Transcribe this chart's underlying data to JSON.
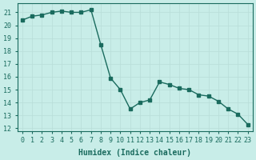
{
  "x": [
    0,
    1,
    2,
    3,
    4,
    5,
    6,
    7,
    8,
    9,
    10,
    11,
    12,
    13,
    14,
    15,
    16,
    17,
    18,
    19,
    20,
    21,
    22,
    23
  ],
  "y": [
    20.4,
    20.7,
    20.8,
    21.0,
    21.1,
    21.0,
    21.0,
    21.2,
    18.5,
    15.9,
    15.0,
    13.5,
    14.0,
    14.2,
    15.6,
    15.4,
    15.1,
    15.0,
    14.6,
    14.5,
    14.1,
    13.5,
    13.1,
    12.3
  ],
  "line_color": "#1a6b5e",
  "marker_color": "#1a6b5e",
  "bg_color": "#c8ede8",
  "grid_color": "#b8ddd8",
  "xlabel": "Humidex (Indice chaleur)",
  "xlim": [
    -0.5,
    23.5
  ],
  "ylim": [
    11.8,
    21.7
  ],
  "yticks": [
    12,
    13,
    14,
    15,
    16,
    17,
    18,
    19,
    20,
    21
  ],
  "xtick_labels": [
    "0",
    "1",
    "2",
    "3",
    "4",
    "5",
    "6",
    "7",
    "8",
    "9",
    "10",
    "11",
    "12",
    "13",
    "14",
    "15",
    "16",
    "17",
    "18",
    "19",
    "20",
    "21",
    "22",
    "23"
  ],
  "label_fontsize": 7,
  "tick_fontsize": 6
}
